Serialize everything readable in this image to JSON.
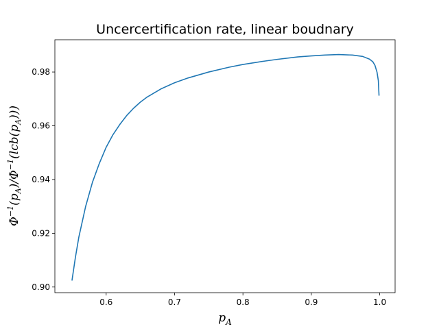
{
  "chart_data": {
    "type": "line",
    "title": "Uncercertification rate, linear boudnary",
    "xlabel": "p_A",
    "ylabel": "Φ⁻¹(p_A)/Φ⁻¹(lcb(p_A)))",
    "xlim": [
      0.525,
      1.0225
    ],
    "ylim": [
      0.8979,
      0.992
    ],
    "grid": false,
    "x_ticks": [
      0.6,
      0.7,
      0.8,
      0.9,
      1.0
    ],
    "x_tick_labels": [
      "0.6",
      "0.7",
      "0.8",
      "0.9",
      "1.0"
    ],
    "y_ticks": [
      0.9,
      0.92,
      0.94,
      0.96,
      0.98
    ],
    "y_tick_labels": [
      "0.90",
      "0.92",
      "0.94",
      "0.96",
      "0.98"
    ],
    "series": [
      {
        "color": "#1f77b4",
        "x": [
          0.55,
          0.555,
          0.56,
          0.57,
          0.58,
          0.59,
          0.6,
          0.61,
          0.62,
          0.63,
          0.64,
          0.65,
          0.66,
          0.68,
          0.7,
          0.72,
          0.75,
          0.78,
          0.8,
          0.83,
          0.85,
          0.88,
          0.9,
          0.92,
          0.94,
          0.96,
          0.975,
          0.985,
          0.99,
          0.993,
          0.996,
          0.998,
          0.999
        ],
        "y": [
          0.9024,
          0.911,
          0.9185,
          0.93,
          0.939,
          0.946,
          0.952,
          0.9567,
          0.9605,
          0.9638,
          0.9665,
          0.9688,
          0.9707,
          0.9737,
          0.976,
          0.9778,
          0.98,
          0.9818,
          0.9828,
          0.984,
          0.9847,
          0.9856,
          0.986,
          0.9863,
          0.9865,
          0.9863,
          0.9858,
          0.9848,
          0.9838,
          0.9825,
          0.98,
          0.9768,
          0.9712
        ]
      }
    ]
  }
}
